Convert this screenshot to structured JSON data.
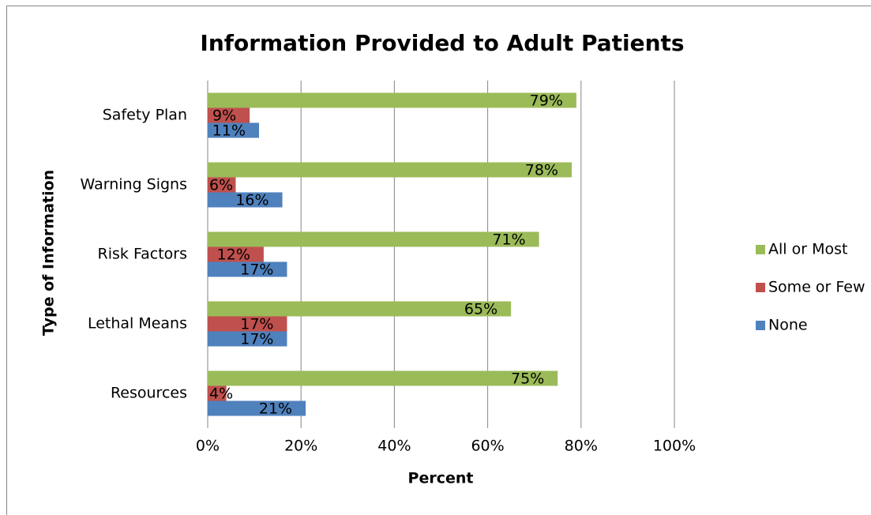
{
  "chart_data": {
    "type": "hbar",
    "title": "Information Provided to Adult Patients",
    "x_label": "Percent",
    "y_label": "Type of Information",
    "categories": [
      "Safety Plan",
      "Warning Signs",
      "Risk Factors",
      "Lethal Means",
      "Resources"
    ],
    "series": [
      {
        "name": "All or Most",
        "color": "#9bbb59",
        "values": [
          79,
          78,
          71,
          65,
          75
        ],
        "value_labels": [
          "79%",
          "78%",
          "71%",
          "65%",
          "75%"
        ]
      },
      {
        "name": "Some or Few",
        "color": "#c0504d",
        "values": [
          9,
          6,
          12,
          17,
          4
        ],
        "value_labels": [
          "9%",
          "6%",
          "12%",
          "17%",
          "4%"
        ]
      },
      {
        "name": "None",
        "color": "#4f81bd",
        "values": [
          11,
          16,
          17,
          17,
          21
        ],
        "value_labels": [
          "11%",
          "16%",
          "17%",
          "17%",
          "21%"
        ]
      }
    ],
    "xlim": [
      0,
      100
    ],
    "xticks": [
      {
        "value": 0,
        "label": "0%"
      },
      {
        "value": 20,
        "label": "20%"
      },
      {
        "value": 40,
        "label": "40%"
      },
      {
        "value": 60,
        "label": "60%"
      },
      {
        "value": 80,
        "label": "80%"
      },
      {
        "value": 100,
        "label": "100%"
      }
    ],
    "grid": true,
    "legend": "right"
  }
}
